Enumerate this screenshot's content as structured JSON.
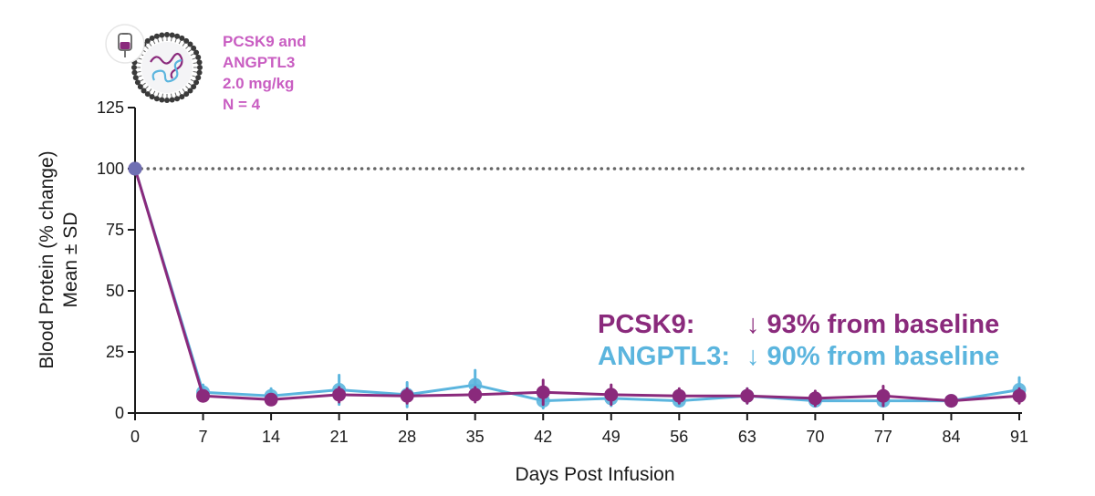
{
  "colors": {
    "pcsk9": "#8a2a7c",
    "angptl3": "#5bb5de",
    "condition_text": "#c95ec2",
    "baseline_line": "#666666",
    "axis": "#1a1a1a"
  },
  "condition": {
    "line1": "PCSK9 and",
    "line2": "ANGPTL3",
    "line3": "2.0 mg/kg",
    "line4": "N = 4"
  },
  "icons": {
    "lnp": "lipid-nanoparticle-icon",
    "iv_bag": "iv-bag-icon"
  },
  "summary": {
    "pcsk9_label": "PCSK9:",
    "pcsk9_text": "↓ 93% from baseline",
    "angptl3_label": "ANGPTL3:",
    "angptl3_text": "↓ 90% from baseline"
  },
  "chart_data": {
    "type": "line",
    "xlabel": "Days Post Infusion",
    "ylabel_line1": "Blood Protein (% change)",
    "ylabel_line2": "Mean ± SD",
    "x": [
      0,
      7,
      14,
      21,
      28,
      35,
      42,
      49,
      56,
      63,
      70,
      77,
      84,
      91
    ],
    "xlim": [
      0,
      91
    ],
    "ylim": [
      0,
      125
    ],
    "yticks": [
      0,
      25,
      50,
      75,
      100,
      125
    ],
    "baseline": 100,
    "series": [
      {
        "name": "ANGPTL3",
        "values": [
          100,
          8.5,
          7,
          9.5,
          7.5,
          11.5,
          5,
          6,
          5,
          7,
          5,
          5,
          5,
          9.5
        ],
        "error": [
          0,
          3,
          3,
          6,
          5,
          6,
          3,
          3,
          2,
          3,
          2,
          2,
          2,
          5
        ]
      },
      {
        "name": "PCSK9",
        "values": [
          100,
          7,
          5.5,
          7.5,
          7,
          7.5,
          8.5,
          7.5,
          7,
          7,
          6,
          7,
          5,
          7
        ],
        "error": [
          0,
          2,
          2,
          3,
          3,
          3,
          5,
          4,
          3,
          3,
          3,
          4,
          2,
          3
        ]
      }
    ]
  }
}
